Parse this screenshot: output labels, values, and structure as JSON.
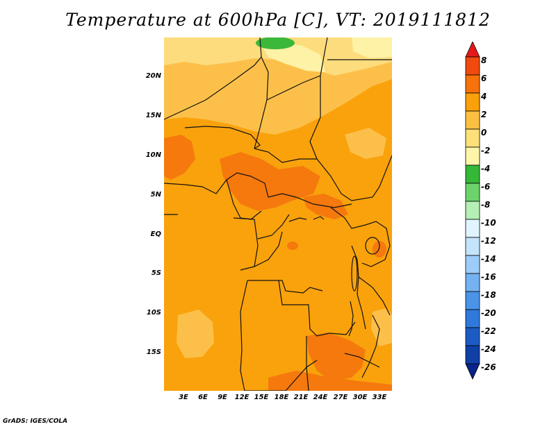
{
  "title": "Temperature at 600hPa [C], VT: 2019111812",
  "credit": "GrADS: IGES/COLA",
  "lat_labels": [
    "20N",
    "15N",
    "10N",
    "5N",
    "EQ",
    "5S",
    "10S",
    "15S"
  ],
  "lon_labels": [
    "3E",
    "6E",
    "9E",
    "12E",
    "15E",
    "18E",
    "21E",
    "24E",
    "27E",
    "30E",
    "33E"
  ],
  "colorbar": {
    "labels": [
      "8",
      "6",
      "4",
      "2",
      "0",
      "-2",
      "-4",
      "-6",
      "-8",
      "-10",
      "-12",
      "-14",
      "-16",
      "-18",
      "-20",
      "-22",
      "-24",
      "-26"
    ],
    "colors": [
      "#e6191a",
      "#f04a0e",
      "#f7720a",
      "#faa00a",
      "#fcc040",
      "#fde079",
      "#fdf5a8",
      "#35b838",
      "#6cd36c",
      "#b4f0b4",
      "#e0f5ff",
      "#c4e4fb",
      "#9ccdf8",
      "#74b2f2",
      "#4a94e8",
      "#2f79dc",
      "#1c5bc4",
      "#1040a6",
      "#0a238a"
    ]
  },
  "map": {
    "fill_colors": {
      "base": "#f9a20c",
      "warm": "#f5790d",
      "cool": "#fcc04a",
      "cooler": "#fddc7d",
      "coolest": "#fdf2a6",
      "green": "#3bb83a"
    }
  }
}
